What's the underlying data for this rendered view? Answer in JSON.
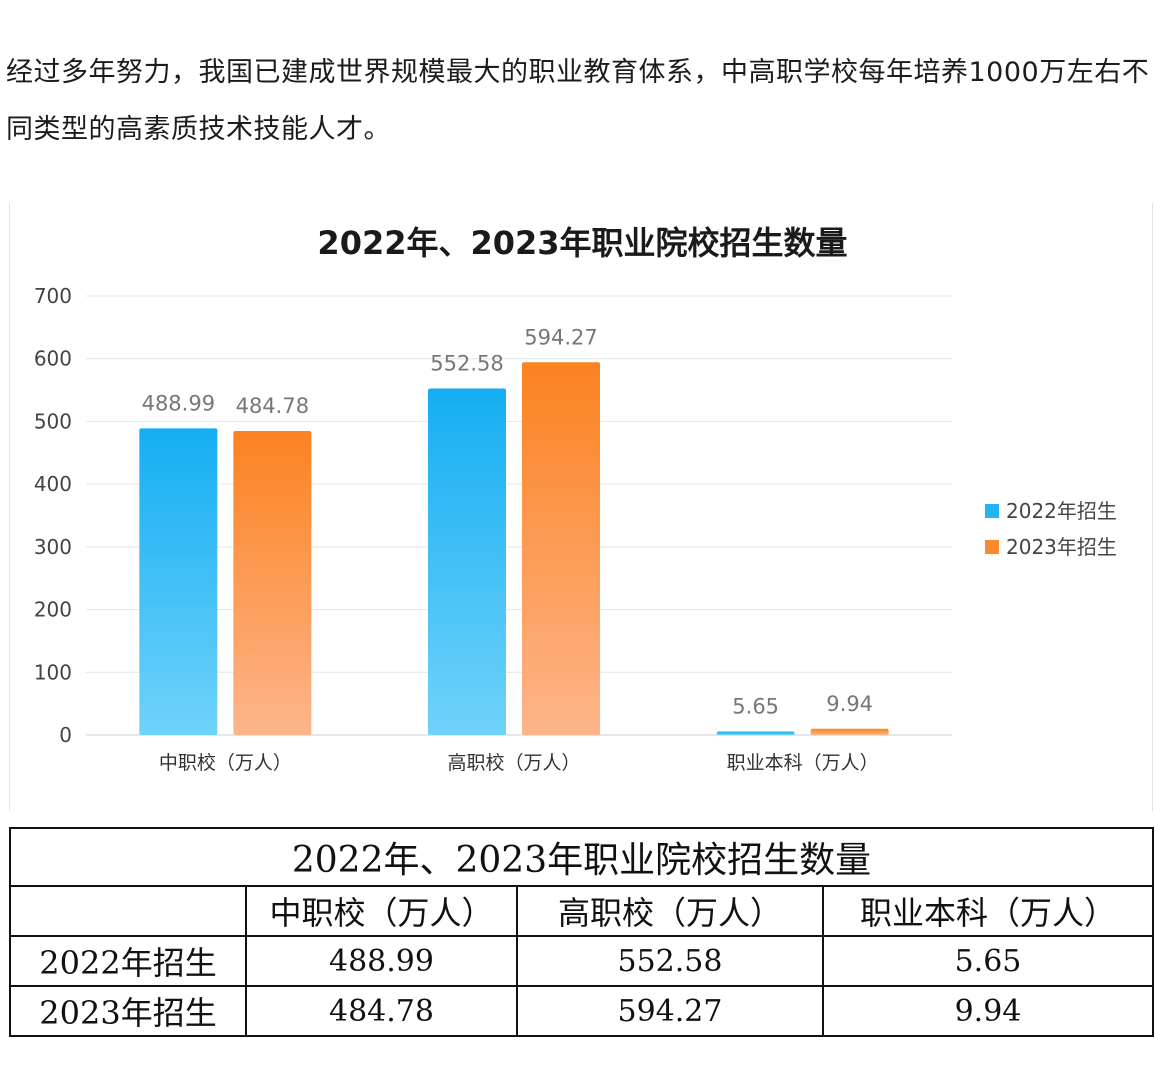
{
  "intro_text": "经过多年努力，我国已建成世界规模最大的职业教育体系，中高职学校每年培养1000万左右不同类型的高素质技术技能人才。",
  "chart_data": {
    "type": "bar",
    "title": "2022年、2023年职业院校招生数量",
    "categories": [
      "中职校（万人）",
      "高职校（万人）",
      "职业本科（万人）"
    ],
    "series": [
      {
        "name": "2022年招生",
        "values": [
          488.99,
          552.58,
          5.65
        ],
        "color": "#22b4f0"
      },
      {
        "name": "2023年招生",
        "values": [
          484.78,
          594.27,
          9.94
        ],
        "color": "#fb8a2e"
      }
    ],
    "data_labels": [
      [
        "488.99",
        "552.58",
        "5.65"
      ],
      [
        "484.78",
        "594.27",
        "9.94"
      ]
    ],
    "yticks": [
      "0",
      "100",
      "200",
      "300",
      "400",
      "500",
      "600",
      "700"
    ],
    "ylim": [
      0,
      700
    ],
    "grid": true,
    "legend": "right"
  },
  "table": {
    "title": "2022年、2023年职业院校招生数量",
    "columns": [
      "",
      "中职校（万人）",
      "高职校（万人）",
      "职业本科（万人）"
    ],
    "rows": [
      [
        "2022年招生",
        "488.99",
        "552.58",
        "5.65"
      ],
      [
        "2023年招生",
        "484.78",
        "594.27",
        "9.94"
      ]
    ]
  }
}
